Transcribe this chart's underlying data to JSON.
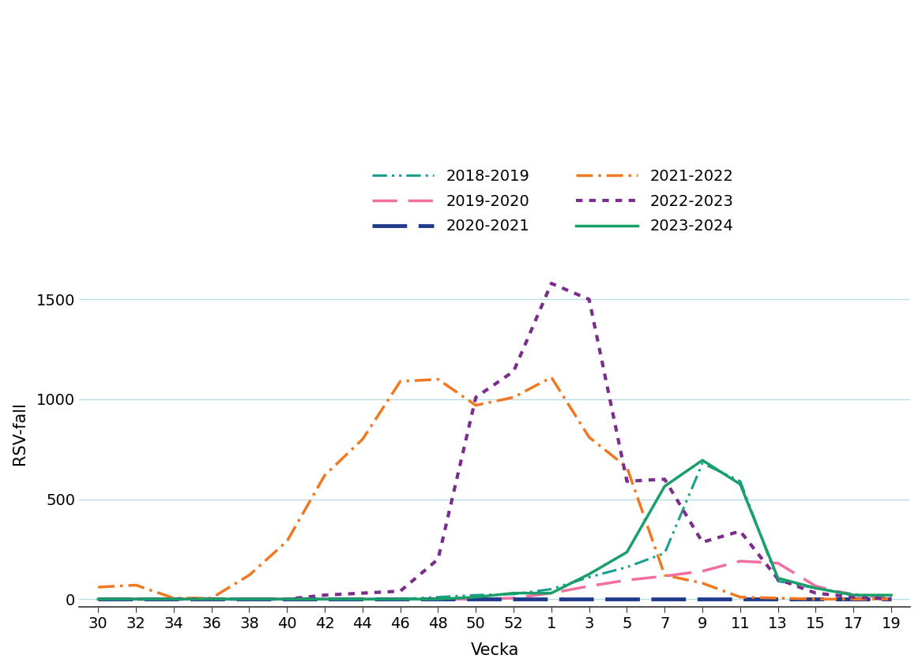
{
  "title": "",
  "ylabel": "RSV-fall",
  "xlabel": "Vecka",
  "x_labels": [
    "30",
    "32",
    "34",
    "36",
    "38",
    "40",
    "42",
    "44",
    "46",
    "48",
    "50",
    "52",
    "1",
    "3",
    "5",
    "7",
    "9",
    "11",
    "13",
    "15",
    "17",
    "19"
  ],
  "ylim": [
    -40,
    1700
  ],
  "yticks": [
    0,
    500,
    1000,
    1500
  ],
  "series": {
    "2018-2019": {
      "color": "#1A9E8E",
      "values": [
        0,
        0,
        0,
        0,
        0,
        0,
        0,
        0,
        0,
        10,
        20,
        25,
        50,
        110,
        160,
        230,
        680,
        590,
        90,
        55,
        25,
        5
      ]
    },
    "2019-2020": {
      "color": "#F06FA0",
      "values": [
        0,
        0,
        0,
        0,
        0,
        0,
        0,
        0,
        0,
        0,
        0,
        5,
        30,
        65,
        95,
        115,
        140,
        190,
        180,
        65,
        20,
        0
      ]
    },
    "2020-2021": {
      "color": "#1F3B8C",
      "values": [
        0,
        0,
        0,
        0,
        0,
        0,
        0,
        0,
        0,
        0,
        0,
        0,
        0,
        0,
        0,
        0,
        0,
        0,
        0,
        0,
        0,
        0
      ]
    },
    "2021-2022": {
      "color": "#F07820",
      "values": [
        60,
        70,
        5,
        5,
        120,
        290,
        620,
        800,
        1090,
        1100,
        970,
        1010,
        1110,
        810,
        660,
        120,
        80,
        10,
        5,
        0,
        0,
        0
      ]
    },
    "2022-2023": {
      "color": "#7B2D8B",
      "values": [
        0,
        0,
        0,
        0,
        0,
        0,
        20,
        30,
        40,
        200,
        1010,
        1140,
        1580,
        1500,
        590,
        600,
        285,
        340,
        100,
        30,
        10,
        0
      ]
    },
    "2023-2024": {
      "color": "#1A9E6A",
      "values": [
        0,
        0,
        0,
        0,
        0,
        0,
        0,
        0,
        0,
        0,
        10,
        30,
        30,
        125,
        235,
        565,
        695,
        575,
        105,
        55,
        20,
        20
      ]
    }
  },
  "legend_order": [
    "2018-2019",
    "2019-2020",
    "2020-2021",
    "2021-2022",
    "2022-2023",
    "2023-2024"
  ],
  "background_color": "#ffffff",
  "grid_color": "#a8d8e0",
  "grid_alpha": 0.8
}
